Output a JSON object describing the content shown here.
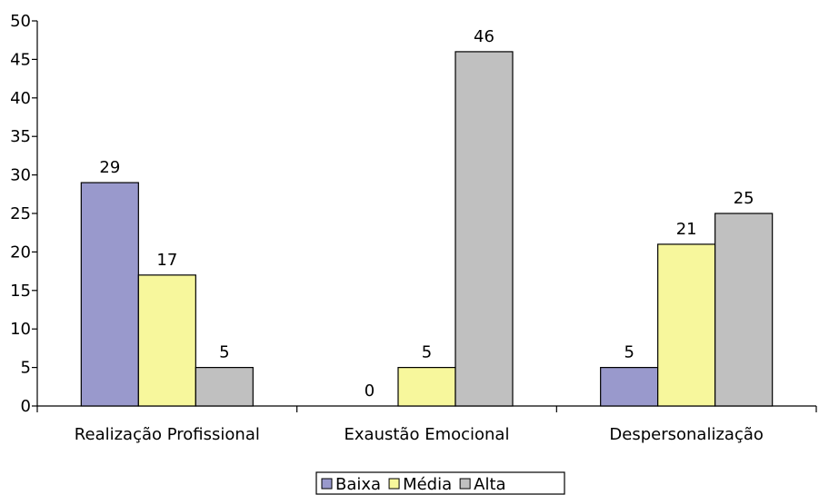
{
  "chart_data": {
    "type": "bar",
    "title": "",
    "xlabel": "",
    "ylabel": "",
    "categories": [
      "Realização Profissional",
      "Exaustão Emocional",
      "Despersonalização"
    ],
    "series": [
      {
        "name": "Baixa",
        "values": [
          29,
          0,
          5
        ],
        "color": "#9999cc"
      },
      {
        "name": "Média",
        "values": [
          17,
          5,
          21
        ],
        "color": "#f7f79c"
      },
      {
        "name": "Alta",
        "values": [
          5,
          46,
          25
        ],
        "color": "#c0c0c0"
      }
    ],
    "ylim": [
      0,
      50
    ],
    "yticks": [
      0,
      5,
      10,
      15,
      20,
      25,
      30,
      35,
      40,
      45,
      50
    ],
    "grid": false,
    "legend_position": "bottom",
    "data_labels": true
  }
}
